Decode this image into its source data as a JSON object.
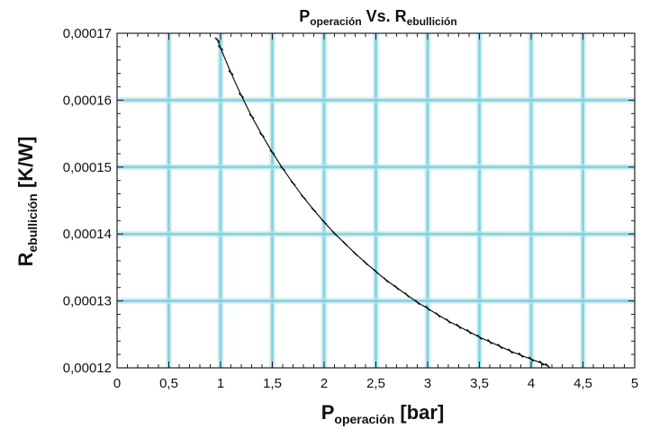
{
  "chart_data": {
    "type": "line",
    "title_main": "P",
    "title_main_sub": "operación",
    "title_vs": " Vs. R",
    "title_vs_sub": "ebullición",
    "xlabel_main": "P",
    "xlabel_sub": "operación",
    "xlabel_unit": "  [bar]",
    "ylabel_main": "R",
    "ylabel_sub": "ebullición",
    "ylabel_unit": "  [K/W]",
    "xlim": [
      0,
      5
    ],
    "ylim": [
      0.00012,
      0.00017
    ],
    "x_ticks": [
      "0",
      "0,5",
      "1",
      "1,5",
      "2",
      "2,5",
      "3",
      "3,5",
      "4",
      "4,5",
      "5"
    ],
    "y_ticks": [
      "0,00012",
      "0,00013",
      "0,00014",
      "0,00015",
      "0,00016",
      "0,00017"
    ],
    "grid": true,
    "grid_color": "#7ccfdc",
    "line_color": "#111111",
    "series": [
      {
        "x": [
          0.97,
          1.0,
          1.1,
          1.2,
          1.3,
          1.4,
          1.5,
          1.6,
          1.7,
          1.8,
          1.9,
          2.0,
          2.1,
          2.2,
          2.3,
          2.4,
          2.5,
          2.6,
          2.7,
          2.8,
          2.9,
          3.0,
          3.1,
          3.2,
          3.3,
          3.4,
          3.5,
          3.6,
          3.7,
          3.8,
          3.9,
          4.0,
          4.1,
          4.16
        ],
        "y": [
          0.000169,
          0.0001678,
          0.0001641,
          0.0001607,
          0.0001576,
          0.0001548,
          0.0001522,
          0.0001498,
          0.0001476,
          0.0001455,
          0.0001436,
          0.0001418,
          0.0001401,
          0.0001386,
          0.0001371,
          0.0001357,
          0.0001344,
          0.0001331,
          0.000132,
          0.0001309,
          0.0001298,
          0.0001289,
          0.0001279,
          0.000127,
          0.0001262,
          0.0001254,
          0.0001246,
          0.0001239,
          0.0001232,
          0.0001225,
          0.0001219,
          0.0001213,
          0.0001207,
          0.0001203
        ]
      }
    ]
  }
}
